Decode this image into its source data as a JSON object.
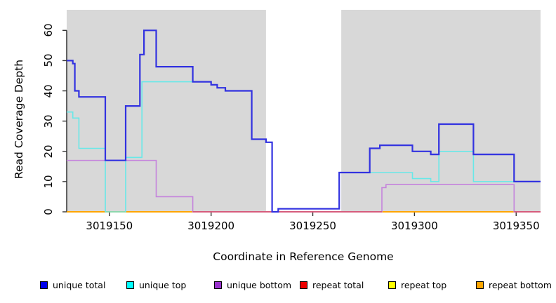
{
  "figure": {
    "background": "#ffffff",
    "plot_background_shade": "#d8d8d8"
  },
  "axes": {
    "x": {
      "label": "Coordinate in Reference Genome",
      "tick_labels": [
        "3019150",
        "3019200",
        "3019250",
        "3019300",
        "3019350"
      ],
      "tick_values": [
        3019150,
        3019200,
        3019250,
        3019300,
        3019350
      ]
    },
    "y": {
      "label": "Read Coverage Depth",
      "tick_labels": [
        "0",
        "10",
        "20",
        "30",
        "40",
        "50",
        "60"
      ],
      "tick_values": [
        0,
        10,
        20,
        30,
        40,
        50,
        60
      ]
    }
  },
  "chart_data": {
    "type": "line",
    "step": true,
    "title": "",
    "xlabel": "Coordinate in Reference Genome",
    "ylabel": "Read Coverage Depth",
    "xlim": [
      3019129,
      3019362
    ],
    "ylim": [
      0,
      66.8
    ],
    "grid": false,
    "legend_position": "bottom",
    "background_shading": {
      "color": "#d8d8d8",
      "regions": [
        [
          3019129,
          3019227
        ],
        [
          3019264,
          3019362
        ]
      ]
    },
    "series": [
      {
        "name": "unique total",
        "color": "#3232e0",
        "width": 2.2,
        "steps": [
          [
            3019129,
            50
          ],
          [
            3019132,
            49
          ],
          [
            3019133,
            40
          ],
          [
            3019135,
            38
          ],
          [
            3019148,
            17
          ],
          [
            3019158,
            35
          ],
          [
            3019165,
            52
          ],
          [
            3019167,
            60
          ],
          [
            3019173,
            48
          ],
          [
            3019191,
            43
          ],
          [
            3019200,
            42
          ],
          [
            3019203,
            41
          ],
          [
            3019207,
            40
          ],
          [
            3019220,
            24
          ],
          [
            3019227,
            23
          ],
          [
            3019230,
            0
          ],
          [
            3019233,
            1
          ],
          [
            3019263,
            13
          ],
          [
            3019278,
            21
          ],
          [
            3019283,
            22
          ],
          [
            3019299,
            20
          ],
          [
            3019308,
            19
          ],
          [
            3019312,
            29
          ],
          [
            3019329,
            19
          ],
          [
            3019349,
            10
          ]
        ]
      },
      {
        "name": "unique top",
        "color": "#68e8e8",
        "width": 1.6,
        "steps": [
          [
            3019129,
            33
          ],
          [
            3019132,
            31
          ],
          [
            3019135,
            21
          ],
          [
            3019148,
            0
          ],
          [
            3019158,
            18
          ],
          [
            3019166,
            43
          ],
          [
            3019200,
            42
          ],
          [
            3019203,
            41
          ],
          [
            3019207,
            40
          ],
          [
            3019220,
            24
          ],
          [
            3019227,
            23
          ],
          [
            3019230,
            0
          ],
          [
            3019233,
            1
          ],
          [
            3019263,
            13
          ],
          [
            3019299,
            11
          ],
          [
            3019308,
            10
          ],
          [
            3019312,
            20
          ],
          [
            3019329,
            10
          ]
        ]
      },
      {
        "name": "unique bottom",
        "color": "#c584dc",
        "width": 1.6,
        "steps": [
          [
            3019129,
            17
          ],
          [
            3019173,
            5
          ],
          [
            3019191,
            0
          ],
          [
            3019284,
            8
          ],
          [
            3019286,
            9
          ],
          [
            3019349,
            0
          ]
        ]
      },
      {
        "name": "repeat total",
        "color": "#dd1111",
        "width": 1.6,
        "steps": [
          [
            3019129,
            0
          ]
        ]
      },
      {
        "name": "repeat top",
        "color": "#eeee00",
        "width": 1.6,
        "steps": [
          [
            3019129,
            0
          ]
        ]
      },
      {
        "name": "repeat bottom",
        "color": "#ffa500",
        "width": 2.0,
        "steps": [
          [
            3019129,
            0
          ]
        ]
      }
    ],
    "zero_line_overlap": {
      "color": "#d4547e",
      "segments": [
        [
          3019191,
          3019284
        ],
        [
          3019349,
          3019362
        ]
      ]
    }
  },
  "legend": {
    "items": [
      {
        "label": "unique total",
        "color": "#0000ee"
      },
      {
        "label": "unique top",
        "color": "#00ffff"
      },
      {
        "label": "unique bottom",
        "color": "#9932cc"
      },
      {
        "label": "repeat total",
        "color": "#ee0000"
      },
      {
        "label": "repeat top",
        "color": "#ffff00"
      },
      {
        "label": "repeat bottom",
        "color": "#ffa500"
      }
    ]
  }
}
